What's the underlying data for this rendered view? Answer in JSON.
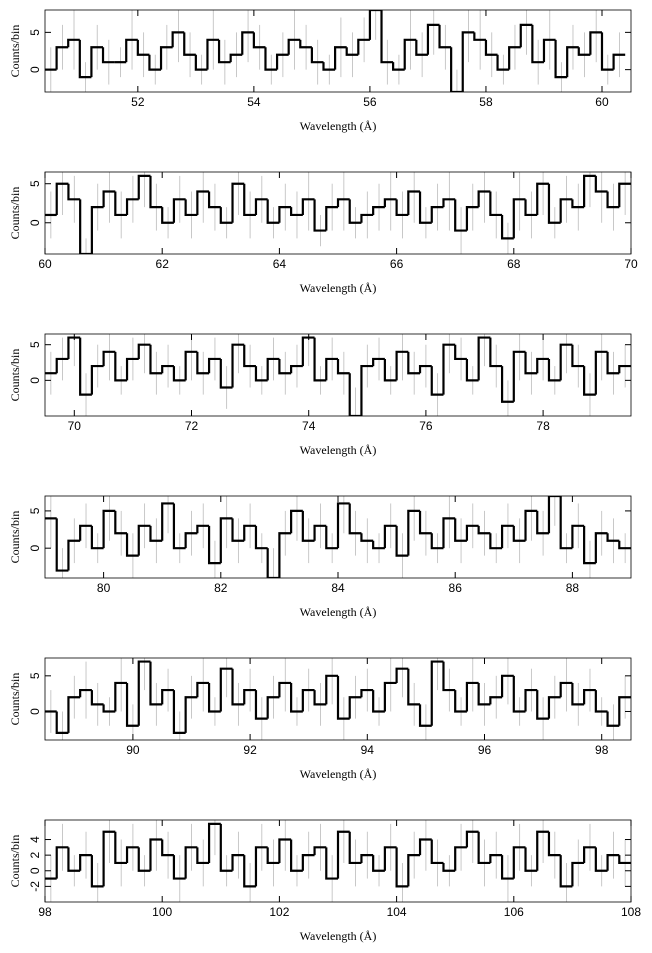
{
  "chart_data": [
    {
      "type": "histogram",
      "xlabel": "Wavelength (Å)",
      "ylabel": "Counts/bin",
      "color": "#000000",
      "error_color": "#bbbbbb",
      "xlim": [
        50.4,
        60.5
      ],
      "ylim": [
        -3,
        8
      ],
      "xticks": [
        52,
        54,
        56,
        58,
        60
      ],
      "yticks": [
        0,
        5
      ],
      "bins": [
        50.4,
        50.6,
        50.8,
        51,
        51.2,
        51.4,
        51.6,
        51.8,
        52,
        52.2,
        52.4,
        52.6,
        52.8,
        53,
        53.2,
        53.4,
        53.6,
        53.8,
        54,
        54.2,
        54.4,
        54.6,
        54.8,
        55,
        55.2,
        55.4,
        55.6,
        55.8,
        56,
        56.2,
        56.4,
        56.6,
        56.8,
        57,
        57.2,
        57.4,
        57.6,
        57.8,
        58,
        58.2,
        58.4,
        58.6,
        58.8,
        59,
        59.2,
        59.4,
        59.6,
        59.8,
        60,
        60.2,
        60.4
      ],
      "values": [
        0,
        3,
        4,
        -1,
        3,
        1,
        1,
        4,
        2,
        0,
        3,
        5,
        2,
        0,
        4,
        1,
        2,
        5,
        3,
        0,
        2,
        4,
        3,
        1,
        0,
        3,
        2,
        4,
        8,
        1,
        0,
        4,
        2,
        6,
        3,
        -3,
        5,
        4,
        2,
        0,
        3,
        6,
        1,
        4,
        -1,
        3,
        2,
        5,
        0,
        2
      ],
      "errors": [
        3,
        3,
        4,
        2,
        3,
        3,
        2,
        4,
        3,
        2,
        3,
        4,
        3,
        2,
        4,
        3,
        3,
        4,
        3,
        2,
        3,
        4,
        3,
        3,
        2,
        4,
        3,
        3,
        4,
        3,
        2,
        4,
        3,
        4,
        3,
        3,
        4,
        4,
        3,
        2,
        3,
        4,
        3,
        4,
        2,
        3,
        3,
        4,
        2,
        3
      ]
    },
    {
      "type": "histogram",
      "xlabel": "Wavelength (Å)",
      "ylabel": "Counts/bin",
      "color": "#000000",
      "error_color": "#bbbbbb",
      "xlim": [
        60,
        70
      ],
      "ylim": [
        -4,
        6.5
      ],
      "xticks": [
        60,
        62,
        64,
        66,
        68,
        70
      ],
      "yticks": [
        0,
        5
      ],
      "bins": [
        60,
        60.2,
        60.4,
        60.6,
        60.8,
        61,
        61.2,
        61.4,
        61.6,
        61.8,
        62,
        62.2,
        62.4,
        62.6,
        62.8,
        63,
        63.2,
        63.4,
        63.6,
        63.8,
        64,
        64.2,
        64.4,
        64.6,
        64.8,
        65,
        65.2,
        65.4,
        65.6,
        65.8,
        66,
        66.2,
        66.4,
        66.6,
        66.8,
        67,
        67.2,
        67.4,
        67.6,
        67.8,
        68,
        68.2,
        68.4,
        68.6,
        68.8,
        69,
        69.2,
        69.4,
        69.6,
        69.8,
        70
      ],
      "values": [
        1,
        5,
        3,
        -4,
        2,
        4,
        1,
        3,
        6,
        2,
        0,
        3,
        1,
        4,
        2,
        0,
        5,
        1,
        3,
        0,
        2,
        1,
        3,
        -1,
        2,
        3,
        0,
        1,
        2,
        3,
        1,
        4,
        0,
        2,
        3,
        -1,
        2,
        4,
        1,
        -2,
        3,
        1,
        5,
        0,
        3,
        2,
        6,
        4,
        2,
        5
      ],
      "errors": [
        3,
        4,
        3,
        2,
        3,
        4,
        3,
        3,
        4,
        3,
        2,
        3,
        3,
        4,
        3,
        2,
        4,
        3,
        3,
        2,
        3,
        3,
        4,
        2,
        3,
        4,
        2,
        3,
        3,
        4,
        3,
        4,
        2,
        3,
        4,
        3,
        3,
        4,
        3,
        2,
        4,
        3,
        4,
        2,
        3,
        3,
        4,
        4,
        3,
        4
      ]
    },
    {
      "type": "histogram",
      "xlabel": "Wavelength (Å)",
      "ylabel": "Counts/bin",
      "color": "#000000",
      "error_color": "#bbbbbb",
      "xlim": [
        69.5,
        79.5
      ],
      "ylim": [
        -5,
        6.5
      ],
      "xticks": [
        70,
        72,
        74,
        76,
        78
      ],
      "yticks": [
        0,
        5
      ],
      "bins": [
        69.5,
        69.7,
        69.9,
        70.1,
        70.3,
        70.5,
        70.7,
        70.9,
        71.1,
        71.3,
        71.5,
        71.7,
        71.9,
        72.1,
        72.3,
        72.5,
        72.7,
        72.9,
        73.1,
        73.3,
        73.5,
        73.7,
        73.9,
        74.1,
        74.3,
        74.5,
        74.7,
        74.9,
        75.1,
        75.3,
        75.5,
        75.7,
        75.9,
        76.1,
        76.3,
        76.5,
        76.7,
        76.9,
        77.1,
        77.3,
        77.5,
        77.7,
        77.9,
        78.1,
        78.3,
        78.5,
        78.7,
        78.9,
        79.1,
        79.3,
        79.5
      ],
      "values": [
        1,
        3,
        6,
        -2,
        2,
        4,
        0,
        3,
        5,
        1,
        2,
        0,
        4,
        1,
        3,
        -1,
        5,
        2,
        0,
        3,
        1,
        2,
        6,
        0,
        3,
        1,
        -5,
        2,
        3,
        0,
        4,
        1,
        2,
        -2,
        5,
        3,
        0,
        6,
        2,
        -3,
        4,
        1,
        3,
        0,
        5,
        2,
        -2,
        4,
        1,
        2
      ],
      "errors": [
        3,
        3,
        4,
        3,
        3,
        4,
        2,
        3,
        4,
        3,
        3,
        2,
        4,
        3,
        3,
        3,
        4,
        3,
        2,
        3,
        3,
        3,
        4,
        2,
        3,
        3,
        4,
        3,
        3,
        2,
        4,
        3,
        3,
        3,
        4,
        3,
        2,
        4,
        3,
        3,
        4,
        3,
        3,
        2,
        4,
        3,
        3,
        4,
        3,
        3
      ]
    },
    {
      "type": "histogram",
      "xlabel": "Wavelength (Å)",
      "ylabel": "Counts/bin",
      "color": "#000000",
      "error_color": "#bbbbbb",
      "xlim": [
        79,
        89
      ],
      "ylim": [
        -4,
        7
      ],
      "xticks": [
        80,
        82,
        84,
        86,
        88
      ],
      "yticks": [
        0,
        5
      ],
      "bins": [
        79,
        79.2,
        79.4,
        79.6,
        79.8,
        80,
        80.2,
        80.4,
        80.6,
        80.8,
        81,
        81.2,
        81.4,
        81.6,
        81.8,
        82,
        82.2,
        82.4,
        82.6,
        82.8,
        83,
        83.2,
        83.4,
        83.6,
        83.8,
        84,
        84.2,
        84.4,
        84.6,
        84.8,
        85,
        85.2,
        85.4,
        85.6,
        85.8,
        86,
        86.2,
        86.4,
        86.6,
        86.8,
        87,
        87.2,
        87.4,
        87.6,
        87.8,
        88,
        88.2,
        88.4,
        88.6,
        88.8,
        89
      ],
      "values": [
        4,
        -3,
        1,
        3,
        0,
        5,
        2,
        -1,
        3,
        1,
        6,
        0,
        2,
        3,
        -2,
        4,
        1,
        3,
        0,
        -4,
        2,
        5,
        1,
        3,
        0,
        6,
        2,
        1,
        0,
        3,
        -1,
        5,
        2,
        0,
        4,
        1,
        3,
        2,
        0,
        3,
        1,
        5,
        2,
        7,
        0,
        3,
        -2,
        2,
        1,
        0
      ],
      "errors": [
        4,
        3,
        3,
        3,
        2,
        4,
        3,
        3,
        3,
        3,
        4,
        2,
        3,
        3,
        3,
        4,
        3,
        3,
        2,
        4,
        3,
        4,
        3,
        3,
        2,
        4,
        3,
        3,
        2,
        3,
        3,
        4,
        3,
        2,
        4,
        3,
        3,
        3,
        2,
        3,
        3,
        4,
        3,
        4,
        2,
        3,
        3,
        3,
        3,
        2
      ]
    },
    {
      "type": "histogram",
      "xlabel": "Wavelength (Å)",
      "ylabel": "Counts/bin",
      "color": "#000000",
      "error_color": "#bbbbbb",
      "xlim": [
        88.5,
        98.5
      ],
      "ylim": [
        -4,
        7.5
      ],
      "xticks": [
        90,
        92,
        94,
        96,
        98
      ],
      "yticks": [
        0,
        5
      ],
      "bins": [
        88.5,
        88.7,
        88.9,
        89.1,
        89.3,
        89.5,
        89.7,
        89.9,
        90.1,
        90.3,
        90.5,
        90.7,
        90.9,
        91.1,
        91.3,
        91.5,
        91.7,
        91.9,
        92.1,
        92.3,
        92.5,
        92.7,
        92.9,
        93.1,
        93.3,
        93.5,
        93.7,
        93.9,
        94.1,
        94.3,
        94.5,
        94.7,
        94.9,
        95.1,
        95.3,
        95.5,
        95.7,
        95.9,
        96.1,
        96.3,
        96.5,
        96.7,
        96.9,
        97.1,
        97.3,
        97.5,
        97.7,
        97.9,
        98.1,
        98.3,
        98.5
      ],
      "values": [
        0,
        -3,
        2,
        3,
        1,
        0,
        4,
        -2,
        7,
        1,
        3,
        -3,
        2,
        4,
        0,
        6,
        1,
        3,
        -1,
        2,
        4,
        0,
        3,
        1,
        5,
        -1,
        2,
        3,
        0,
        4,
        6,
        1,
        -2,
        7,
        3,
        0,
        4,
        1,
        2,
        5,
        0,
        3,
        -1,
        2,
        4,
        1,
        3,
        0,
        -2,
        2
      ],
      "errors": [
        3,
        3,
        3,
        4,
        3,
        2,
        4,
        3,
        4,
        3,
        3,
        3,
        3,
        4,
        2,
        4,
        3,
        3,
        3,
        3,
        4,
        2,
        3,
        3,
        4,
        3,
        3,
        3,
        2,
        4,
        4,
        3,
        3,
        4,
        3,
        2,
        4,
        3,
        3,
        4,
        2,
        3,
        3,
        3,
        4,
        3,
        3,
        2,
        3,
        3
      ]
    },
    {
      "type": "histogram",
      "xlabel": "Wavelength (Å)",
      "ylabel": "Counts/bin",
      "color": "#000000",
      "error_color": "#bbbbbb",
      "xlim": [
        98,
        108
      ],
      "ylim": [
        -4,
        6.5
      ],
      "xticks": [
        98,
        100,
        102,
        104,
        106,
        108
      ],
      "yticks": [
        -2,
        0,
        2,
        4
      ],
      "bins": [
        98,
        98.2,
        98.4,
        98.6,
        98.8,
        99,
        99.2,
        99.4,
        99.6,
        99.8,
        100,
        100.2,
        100.4,
        100.6,
        100.8,
        101,
        101.2,
        101.4,
        101.6,
        101.8,
        102,
        102.2,
        102.4,
        102.6,
        102.8,
        103,
        103.2,
        103.4,
        103.6,
        103.8,
        104,
        104.2,
        104.4,
        104.6,
        104.8,
        105,
        105.2,
        105.4,
        105.6,
        105.8,
        106,
        106.2,
        106.4,
        106.6,
        106.8,
        107,
        107.2,
        107.4,
        107.6,
        107.8,
        108
      ],
      "values": [
        -1,
        3,
        0,
        2,
        -2,
        5,
        1,
        3,
        0,
        4,
        2,
        -1,
        3,
        1,
        6,
        0,
        2,
        -2,
        3,
        1,
        4,
        0,
        2,
        3,
        -1,
        5,
        1,
        2,
        0,
        3,
        -2,
        2,
        4,
        1,
        0,
        3,
        5,
        1,
        2,
        -1,
        3,
        0,
        5,
        2,
        -2,
        1,
        3,
        0,
        2,
        1
      ],
      "errors": [
        3,
        3,
        2,
        3,
        3,
        4,
        3,
        3,
        2,
        4,
        3,
        3,
        3,
        3,
        4,
        2,
        3,
        3,
        3,
        3,
        4,
        2,
        3,
        3,
        3,
        4,
        3,
        3,
        2,
        3,
        3,
        3,
        4,
        3,
        2,
        3,
        4,
        3,
        3,
        3,
        3,
        2,
        4,
        3,
        3,
        3,
        3,
        2,
        3,
        3
      ]
    }
  ]
}
